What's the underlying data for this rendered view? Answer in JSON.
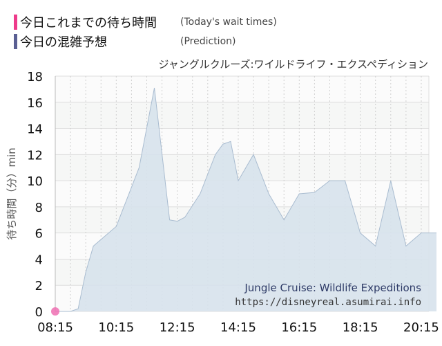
{
  "legend": {
    "today": {
      "label": "今日これまでの待ち時間",
      "sublabel": "(Today's wait times)",
      "color": "#ee3b8b"
    },
    "prediction": {
      "label": "今日の混雑予想",
      "sublabel": "(Prediction)",
      "color": "#5a5f93"
    }
  },
  "attraction_name": "ジャングルクルーズ:ワイルドライフ・エクスペディション",
  "watermark": {
    "title": "Jungle Cruise: Wildlife Expeditions",
    "url": "https://disneyreal.asumirai.info"
  },
  "chart_data": {
    "type": "area",
    "ylabel": "待ち時間（分）min",
    "xlabel": "",
    "ylim": [
      0,
      18
    ],
    "yticks": [
      "0",
      "2",
      "4",
      "6",
      "8",
      "10",
      "12",
      "14",
      "16",
      "18"
    ],
    "xticks": [
      "08:15",
      "10:15",
      "12:15",
      "14:15",
      "16:15",
      "18:15",
      "20:15"
    ],
    "xlim_minutes": [
      495,
      1230
    ],
    "grid": true,
    "series": [
      {
        "name": "今日の混雑予想",
        "color": "#a9bcd0",
        "points": [
          [
            "08:15",
            0
          ],
          [
            "08:45",
            0
          ],
          [
            "09:00",
            0.2
          ],
          [
            "09:15",
            3
          ],
          [
            "09:30",
            5
          ],
          [
            "10:00",
            6
          ],
          [
            "10:15",
            6.5
          ],
          [
            "10:30",
            8
          ],
          [
            "11:00",
            11
          ],
          [
            "11:30",
            17.1
          ],
          [
            "12:00",
            7
          ],
          [
            "12:15",
            6.9
          ],
          [
            "12:30",
            7.2
          ],
          [
            "13:00",
            9
          ],
          [
            "13:30",
            12
          ],
          [
            "13:45",
            12.8
          ],
          [
            "14:00",
            13
          ],
          [
            "14:15",
            10
          ],
          [
            "14:45",
            12
          ],
          [
            "15:15",
            9
          ],
          [
            "15:45",
            7
          ],
          [
            "16:15",
            9
          ],
          [
            "16:45",
            9.1
          ],
          [
            "17:15",
            10
          ],
          [
            "17:45",
            10
          ],
          [
            "18:15",
            6
          ],
          [
            "18:45",
            5
          ],
          [
            "19:15",
            10
          ],
          [
            "19:45",
            5
          ],
          [
            "20:15",
            6
          ],
          [
            "20:45",
            6
          ]
        ]
      },
      {
        "name": "今日これまでの待ち時間",
        "color": "#ee6fb1",
        "points": [
          [
            "08:15",
            0
          ]
        ]
      }
    ]
  }
}
